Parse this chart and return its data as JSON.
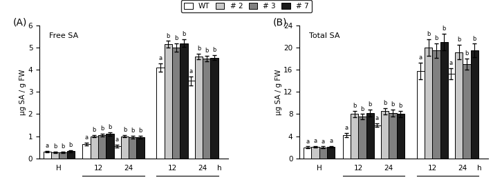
{
  "panel_A": {
    "title": "Free SA",
    "ylabel": "μg SA / g FW",
    "ylim": [
      0,
      6
    ],
    "yticks": [
      0,
      1,
      2,
      3,
      4,
      5,
      6
    ],
    "values": {
      "WT": [
        0.3,
        0.65,
        0.55,
        4.1,
        3.5
      ],
      "#2": [
        0.28,
        1.0,
        1.0,
        5.15,
        4.6
      ],
      "#3": [
        0.27,
        1.05,
        0.95,
        5.0,
        4.5
      ],
      "#7": [
        0.32,
        1.1,
        0.95,
        5.2,
        4.55
      ]
    },
    "errors": {
      "WT": [
        0.03,
        0.07,
        0.07,
        0.18,
        0.2
      ],
      "#2": [
        0.03,
        0.06,
        0.06,
        0.15,
        0.12
      ],
      "#3": [
        0.03,
        0.06,
        0.06,
        0.18,
        0.12
      ],
      "#7": [
        0.04,
        0.07,
        0.06,
        0.18,
        0.12
      ]
    },
    "sig_labels": {
      "WT": [
        "a",
        "a",
        "a",
        "a",
        "a"
      ],
      "#2": [
        "b",
        "b",
        "b",
        "b",
        "b"
      ],
      "#3": [
        "b",
        "b",
        "b",
        "b",
        "b"
      ],
      "#7": [
        "b",
        "b",
        "b",
        "b",
        "b"
      ]
    }
  },
  "panel_B": {
    "title": "Total SA",
    "ylabel": "μg SA / g FW",
    "ylim": [
      0,
      24
    ],
    "yticks": [
      0,
      4,
      8,
      12,
      16,
      20,
      24
    ],
    "values": {
      "WT": [
        2.0,
        4.2,
        6.0,
        15.8,
        15.3
      ],
      "#2": [
        2.1,
        8.0,
        8.5,
        20.0,
        19.2
      ],
      "#3": [
        2.0,
        7.5,
        8.2,
        19.5,
        17.0
      ],
      "#7": [
        2.1,
        8.2,
        8.0,
        21.0,
        19.5
      ]
    },
    "errors": {
      "WT": [
        0.15,
        0.4,
        0.35,
        1.5,
        1.0
      ],
      "#2": [
        0.15,
        0.6,
        0.6,
        1.5,
        1.3
      ],
      "#3": [
        0.15,
        0.5,
        0.6,
        1.3,
        1.0
      ],
      "#7": [
        0.15,
        0.6,
        0.6,
        1.5,
        1.2
      ]
    },
    "sig_labels": {
      "WT": [
        "a",
        "a",
        "a",
        "a",
        "a"
      ],
      "#2": [
        "a",
        "b",
        "b",
        "b",
        "b"
      ],
      "#3": [
        "a",
        "b",
        "b",
        "b",
        "b"
      ],
      "#7": [
        "a",
        "b",
        "b",
        "b",
        "b"
      ]
    }
  },
  "colors": {
    "WT": "#ffffff",
    "#2": "#c8c8c8",
    "#3": "#808080",
    "#7": "#1a1a1a"
  },
  "edge_color": "#000000",
  "bar_width": 0.18,
  "legend_labels": [
    "WT",
    "#2",
    "#3",
    "#7"
  ],
  "sig_fontsize": 6.0,
  "label_fontsize": 7.5,
  "tick_fontsize": 7.5,
  "title_fontsize": 8.0,
  "group_centers": [
    0.5,
    1.4,
    2.1,
    3.1,
    3.8
  ]
}
